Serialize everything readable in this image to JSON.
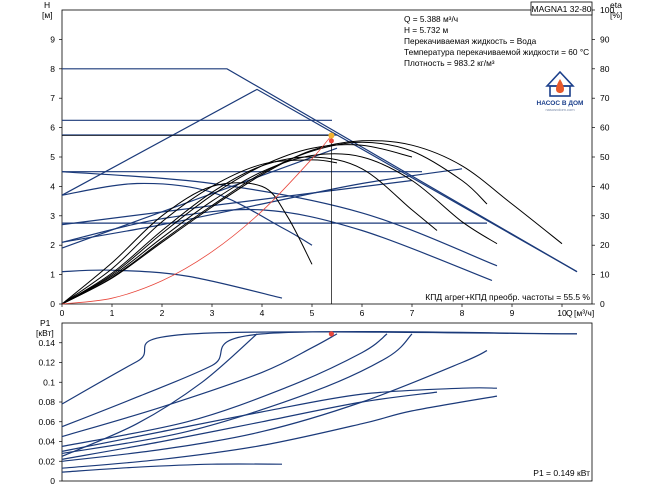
{
  "chart_data": [
    {
      "id": "head",
      "type": "line",
      "title": "MAGNA1 32-80",
      "ylabel": "H",
      "yunit": "[м]",
      "y2label": "eta",
      "y2unit": "[%]",
      "xlabel": "Q",
      "xunit": "[м³/ч]",
      "xlim": [
        0,
        10.6
      ],
      "ylim": [
        0,
        10
      ],
      "y2lim": [
        0,
        100
      ],
      "xticks": [
        0,
        1,
        2,
        3,
        4,
        5,
        6,
        7,
        8,
        9,
        10
      ],
      "yticks": [
        0,
        1,
        2,
        3,
        4,
        5,
        6,
        7,
        8,
        9
      ],
      "y2ticks": [
        0,
        10,
        20,
        30,
        40,
        50,
        60,
        70,
        80,
        90,
        100
      ],
      "grid": false,
      "info_lines": [
        "Q = 5.388 м³/ч",
        "H = 5.732 м",
        "Перекачиваемая жидкость = Вода",
        "Температура перекачиваемой жидкости = 60 °C",
        "Плотность = 983.2 кг/м³"
      ],
      "efficiency_label": "КПД агрег+КПД преобр. частоты = 55.5 %",
      "duty_point": {
        "q": 5.388,
        "h": 5.732
      },
      "duty_point_efficiency": {
        "q": 5.388,
        "eta": 55.5
      },
      "series": [
        {
          "kind": "control",
          "color": "#1b3a7a",
          "points": [
            [
              0,
              8.0
            ],
            [
              3.3,
              8.0
            ],
            [
              10.3,
              1.1
            ]
          ]
        },
        {
          "kind": "control",
          "color": "#1b3a7a",
          "points": [
            [
              0,
              3.7
            ],
            [
              3.9,
              7.3
            ],
            [
              10.3,
              1.1
            ]
          ]
        },
        {
          "kind": "control",
          "color": "#1b3a7a",
          "points": [
            [
              0,
              6.25
            ],
            [
              5.4,
              6.25
            ]
          ]
        },
        {
          "kind": "control",
          "color": "#1b3a7a",
          "points": [
            [
              0,
              5.75
            ],
            [
              5.5,
              5.75
            ]
          ]
        },
        {
          "kind": "control",
          "color": "#1b3a7a",
          "points": [
            [
              0,
              4.5
            ],
            [
              7.2,
              4.5
            ]
          ]
        },
        {
          "kind": "control",
          "color": "#1b3a7a",
          "points": [
            [
              0,
              2.75
            ],
            [
              8.5,
              2.75
            ]
          ]
        },
        {
          "kind": "control",
          "color": "#1b3a7a",
          "points": [
            [
              0,
              1.9
            ],
            [
              5.5,
              5.3
            ]
          ]
        },
        {
          "kind": "control",
          "color": "#1b3a7a",
          "points": [
            [
              0,
              2.7
            ],
            [
              7.0,
              4.2
            ]
          ]
        },
        {
          "kind": "control",
          "color": "#1b3a7a",
          "points": [
            [
              0,
              2.1
            ],
            [
              2.0,
              2.7
            ],
            [
              4.0,
              3.4
            ],
            [
              6.0,
              4.1
            ],
            [
              8.0,
              4.6
            ]
          ]
        },
        {
          "kind": "control",
          "color": "#1b3a7a",
          "points": [
            [
              0,
              4.5
            ],
            [
              3.0,
              4.1
            ],
            [
              6.0,
              3.1
            ],
            [
              8.7,
              1.3
            ]
          ]
        },
        {
          "kind": "control",
          "color": "#1b3a7a",
          "points": [
            [
              0,
              2.1
            ],
            [
              2.0,
              2.9
            ],
            [
              4.0,
              3.2
            ],
            [
              6.0,
              2.5
            ],
            [
              8.6,
              0.8
            ]
          ]
        },
        {
          "kind": "control",
          "color": "#1b3a7a",
          "points": [
            [
              0,
              3.7
            ],
            [
              1.5,
              4.1
            ],
            [
              3.0,
              3.8
            ],
            [
              4.4,
              2.6
            ],
            [
              5.0,
              2.0
            ]
          ]
        },
        {
          "kind": "control",
          "color": "#1b3a7a",
          "points": [
            [
              0,
              1.1
            ],
            [
              1.0,
              1.15
            ],
            [
              2.5,
              0.95
            ],
            [
              4.4,
              0.2
            ]
          ]
        },
        {
          "kind": "efficiency",
          "color": "#000000",
          "points": [
            [
              0,
              0
            ],
            [
              1.0,
              8.8
            ],
            [
              2.0,
              21.0
            ],
            [
              3.0,
              33.0
            ],
            [
              4.0,
              44.0
            ],
            [
              5.0,
              52.3
            ],
            [
              6.0,
              55.5
            ],
            [
              7.0,
              54.0
            ],
            [
              8.0,
              47.0
            ],
            [
              9.0,
              34.0
            ],
            [
              10.0,
              20.5
            ]
          ]
        },
        {
          "kind": "efficiency",
          "color": "#000000",
          "points": [
            [
              0,
              0
            ],
            [
              1.0,
              9.0
            ],
            [
              2.0,
              21.5
            ],
            [
              3.0,
              33.5
            ],
            [
              4.0,
              44.5
            ],
            [
              5.0,
              52.0
            ],
            [
              6.0,
              55.0
            ],
            [
              7.0,
              52.0
            ],
            [
              8.0,
              42.0
            ],
            [
              8.5,
              34.0
            ]
          ]
        },
        {
          "kind": "efficiency",
          "color": "#000000",
          "points": [
            [
              0,
              0
            ],
            [
              1.0,
              9.5
            ],
            [
              2.0,
              22.5
            ],
            [
              3.0,
              35.0
            ],
            [
              4.0,
              45.0
            ],
            [
              5.0,
              50.5
            ],
            [
              6.0,
              50.0
            ],
            [
              7.0,
              42.0
            ],
            [
              8.0,
              28.0
            ],
            [
              8.7,
              20.5
            ]
          ]
        },
        {
          "kind": "efficiency",
          "color": "#000000",
          "points": [
            [
              0,
              0
            ],
            [
              1.0,
              10.5
            ],
            [
              2.0,
              25.0
            ],
            [
              3.0,
              38.0
            ],
            [
              4.0,
              47.0
            ],
            [
              5.0,
              50.0
            ],
            [
              6.0,
              46.0
            ],
            [
              7.0,
              32.0
            ],
            [
              7.5,
              25.0
            ]
          ]
        },
        {
          "kind": "efficiency",
          "color": "#000000",
          "points": [
            [
              0,
              0
            ],
            [
              1.0,
              12.0
            ],
            [
              2.0,
              28.0
            ],
            [
              3.0,
              40.0
            ],
            [
              4.0,
              47.5
            ],
            [
              5.0,
              49.0
            ],
            [
              5.5,
              48.0
            ]
          ]
        },
        {
          "kind": "efficiency",
          "color": "#000000",
          "points": [
            [
              0,
              0
            ],
            [
              1.0,
              14.0
            ],
            [
              2.0,
              30.0
            ],
            [
              3.0,
              40.0
            ],
            [
              4.0,
              40.0
            ],
            [
              4.5,
              30.0
            ],
            [
              5.0,
              13.5
            ]
          ]
        },
        {
          "kind": "efficiency",
          "color": "#000000",
          "points": [
            [
              0,
              0
            ],
            [
              1.0,
              10.0
            ],
            [
              2.0,
              24.0
            ],
            [
              3.0,
              37.0
            ],
            [
              4.0,
              47.0
            ],
            [
              5.0,
              53.0
            ],
            [
              6.0,
              54.0
            ],
            [
              7.0,
              50.0
            ]
          ]
        },
        {
          "kind": "system",
          "color": "#e8473c",
          "points": [
            [
              0,
              0
            ],
            [
              1,
              0.197
            ],
            [
              2,
              0.79
            ],
            [
              3,
              1.78
            ],
            [
              4,
              3.16
            ],
            [
              5,
              4.94
            ],
            [
              5.388,
              5.732
            ]
          ]
        }
      ]
    },
    {
      "id": "power",
      "type": "line",
      "ylabel": "P1",
      "yunit": "[кВт]",
      "xlim": [
        0,
        10.6
      ],
      "ylim": [
        0,
        0.16
      ],
      "yticks": [
        0,
        0.02,
        0.04,
        0.06,
        0.08,
        0.1,
        0.12,
        0.14
      ],
      "grid": false,
      "power_label": "P1 = 0.149 кВт",
      "duty_point": {
        "q": 5.388,
        "p": 0.149
      },
      "series": [
        {
          "color": "#1b3a7a",
          "points": [
            [
              0,
              0.078
            ],
            [
              1.5,
              0.121
            ],
            [
              2.6,
              0.149
            ],
            [
              10.3,
              0.149
            ]
          ]
        },
        {
          "color": "#1b3a7a",
          "points": [
            [
              0,
              0.055
            ],
            [
              1.5,
              0.085
            ],
            [
              3.0,
              0.117
            ],
            [
              4.0,
              0.149
            ],
            [
              10.3,
              0.149
            ]
          ]
        },
        {
          "color": "#1b3a7a",
          "points": [
            [
              0,
              0.025
            ],
            [
              1.5,
              0.058
            ],
            [
              2.8,
              0.1
            ],
            [
              3.9,
              0.149
            ]
          ]
        },
        {
          "color": "#1b3a7a",
          "points": [
            [
              0,
              0.045
            ],
            [
              2.0,
              0.075
            ],
            [
              4.0,
              0.11
            ],
            [
              5.0,
              0.135
            ],
            [
              5.5,
              0.149
            ]
          ]
        },
        {
          "color": "#1b3a7a",
          "points": [
            [
              0,
              0.035
            ],
            [
              2.5,
              0.06
            ],
            [
              4.5,
              0.095
            ],
            [
              6.0,
              0.13
            ],
            [
              6.5,
              0.149
            ]
          ]
        },
        {
          "color": "#1b3a7a",
          "points": [
            [
              0,
              0.028
            ],
            [
              2.5,
              0.05
            ],
            [
              5.0,
              0.09
            ],
            [
              6.5,
              0.125
            ],
            [
              7.0,
              0.149
            ]
          ]
        },
        {
          "color": "#1b3a7a",
          "points": [
            [
              0,
              0.02
            ],
            [
              2.0,
              0.032
            ],
            [
              4.0,
              0.05
            ],
            [
              6.0,
              0.08
            ],
            [
              8.0,
              0.12
            ],
            [
              8.5,
              0.132
            ]
          ]
        },
        {
          "color": "#1b3a7a",
          "points": [
            [
              0,
              0.013
            ],
            [
              2.0,
              0.022
            ],
            [
              4.0,
              0.036
            ],
            [
              6.0,
              0.058
            ],
            [
              7.0,
              0.071
            ],
            [
              8.7,
              0.086
            ]
          ]
        },
        {
          "color": "#1b3a7a",
          "points": [
            [
              0,
              0.03
            ],
            [
              2.0,
              0.05
            ],
            [
              4.0,
              0.07
            ],
            [
              6.0,
              0.088
            ],
            [
              8.0,
              0.094
            ],
            [
              8.7,
              0.094
            ]
          ]
        },
        {
          "color": "#1b3a7a",
          "points": [
            [
              0,
              0.009
            ],
            [
              1.5,
              0.014
            ],
            [
              3.0,
              0.017
            ],
            [
              4.4,
              0.017
            ]
          ]
        },
        {
          "color": "#1b3a7a",
          "points": [
            [
              0,
              0.022
            ],
            [
              2.0,
              0.04
            ],
            [
              4.0,
              0.06
            ],
            [
              6.0,
              0.08
            ],
            [
              7.5,
              0.09
            ]
          ]
        }
      ]
    }
  ],
  "logo": {
    "name": "НАСОС В ДОМ",
    "sub": "nasosvdom.com",
    "icon": "house-drop-logo"
  }
}
